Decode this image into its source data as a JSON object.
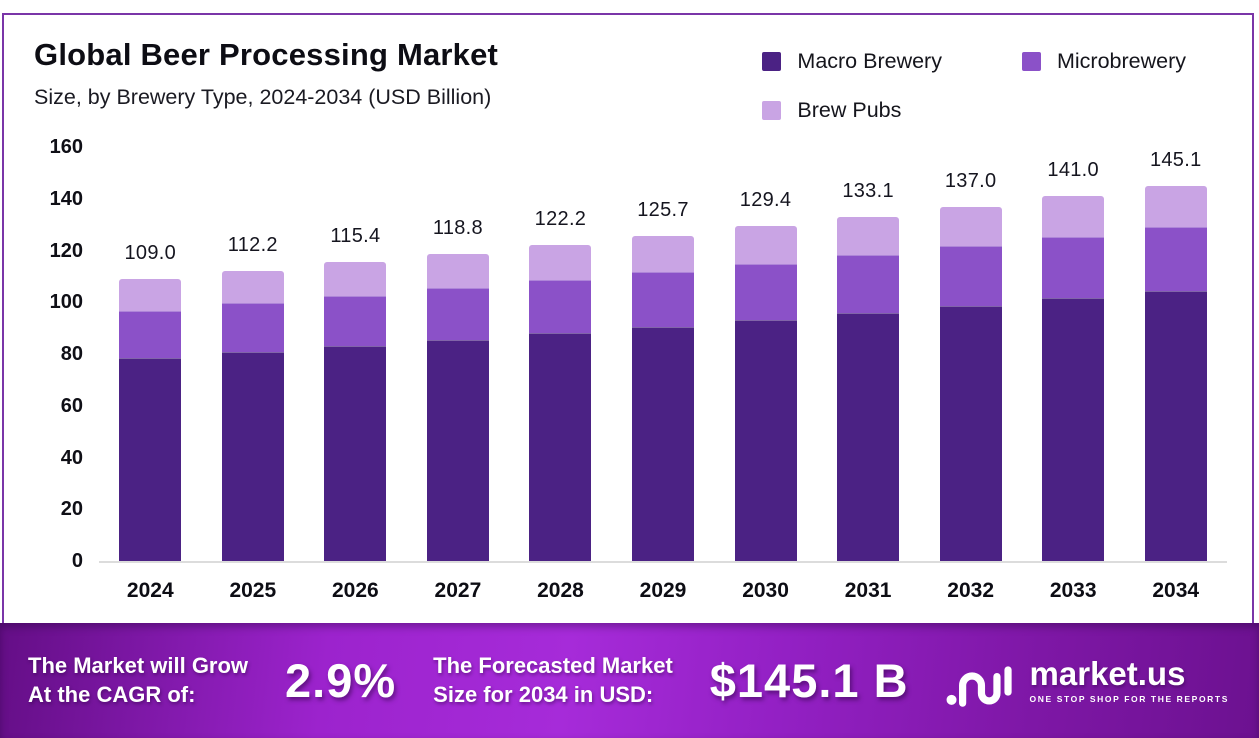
{
  "title": "Global Beer Processing Market",
  "subtitle": "Size, by Brewery Type, 2024-2034 (USD Billion)",
  "legend": [
    {
      "label": "Macro Brewery",
      "color": "#4b2284"
    },
    {
      "label": "Microbrewery",
      "color": "#8b51c8"
    },
    {
      "label": "Brew Pubs",
      "color": "#c9a4e4"
    }
  ],
  "chart_data": {
    "type": "bar",
    "stacked": true,
    "title": "Global Beer Processing Market Size, by Brewery Type, 2024-2034 (USD Billion)",
    "categories": [
      "2024",
      "2025",
      "2026",
      "2027",
      "2028",
      "2029",
      "2030",
      "2031",
      "2032",
      "2033",
      "2034"
    ],
    "series": [
      {
        "name": "Macro Brewery",
        "color": "#4b2284",
        "values": [
          78.5,
          80.8,
          83.1,
          85.5,
          88.0,
          90.5,
          93.2,
          95.8,
          98.6,
          101.5,
          104.5
        ]
      },
      {
        "name": "Microbrewery",
        "color": "#8b51c8",
        "values": [
          18.3,
          18.8,
          19.4,
          20.0,
          20.5,
          21.1,
          21.7,
          22.4,
          23.0,
          23.7,
          24.4
        ]
      },
      {
        "name": "Brew Pubs",
        "color": "#c9a4e4",
        "values": [
          12.2,
          12.6,
          12.9,
          13.3,
          13.7,
          14.1,
          14.5,
          14.9,
          15.4,
          15.8,
          16.2
        ]
      }
    ],
    "totals": [
      109.0,
      112.2,
      115.4,
      118.8,
      122.2,
      125.7,
      129.4,
      133.1,
      137.0,
      141.0,
      145.1
    ],
    "xlabel": "",
    "ylabel": "",
    "ylim": [
      0,
      160
    ],
    "yticks": [
      0,
      20,
      40,
      60,
      80,
      100,
      120,
      140,
      160
    ],
    "grid": false,
    "legend_position": "top-right",
    "frame_color": "#7a35a8"
  },
  "banner": {
    "cagr_label_line1": "The Market will Grow",
    "cagr_label_line2": "At the CAGR of:",
    "cagr_value": "2.9%",
    "forecast_label_line1": "The Forecasted Market",
    "forecast_label_line2": "Size for 2034 in USD:",
    "forecast_value": "$145.1 B",
    "logo_text": "market.us",
    "logo_tagline": "ONE STOP SHOP FOR THE REPORTS"
  }
}
